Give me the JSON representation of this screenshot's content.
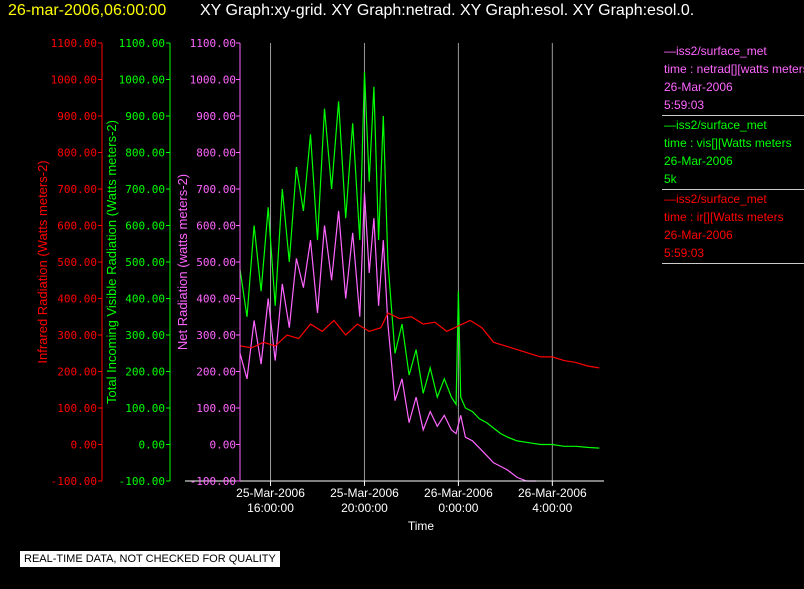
{
  "header": {
    "timestamp": "26-mar-2006,06:00:00",
    "graphs": "XY Graph:xy-grid.  XY Graph:netrad.  XY Graph:esol.  XY Graph:esol.0."
  },
  "notice": "REAL-TIME DATA, NOT CHECKED FOR QUALITY",
  "legend": [
    {
      "color": "#ff66ff",
      "line1": "—iss2/surface_met",
      "line2": "time : netrad[][watts meters",
      "line3": "26-Mar-2006",
      "line4": "5:59:03"
    },
    {
      "color": "#00ff00",
      "line1": "—iss2/surface_met",
      "line2": "time : vis[][Watts meters",
      "line3": "26-Mar-2006",
      "line4": "5k"
    },
    {
      "color": "#ff0000",
      "line1": "—iss2/surface_met",
      "line2": "time : ir[][Watts meters",
      "line3": "26-Mar-2006",
      "line4": "5:59:03"
    }
  ],
  "chart_data": {
    "type": "line",
    "xlabel": "Time",
    "x_ticks": [
      {
        "hour": 16,
        "line1": "25-Mar-2006",
        "line2": "16:00:00"
      },
      {
        "hour": 20,
        "line1": "25-Mar-2006",
        "line2": "20:00:00"
      },
      {
        "hour": 24,
        "line1": "26-Mar-2006",
        "line2": "0:00:00"
      },
      {
        "hour": 28,
        "line1": "26-Mar-2006",
        "line2": "4:00:00"
      }
    ],
    "xlim_hours": [
      14.7,
      30.2
    ],
    "grid_x": true,
    "ylim": [
      -100,
      1100
    ],
    "y_ticks": [
      "-100.00",
      "0.00",
      "100.00",
      "200.00",
      "300.00",
      "400.00",
      "500.00",
      "600.00",
      "700.00",
      "800.00",
      "900.00",
      "1000.00",
      "1100.00"
    ],
    "y_axes": [
      {
        "label": "Infrared Radiation (Watts meters-2)",
        "color": "#ff0000"
      },
      {
        "label": "Total Incoming Visible Radiation (Watts meters-2)",
        "color": "#00ff00"
      },
      {
        "label": "Net Radiation (watts meters-2)",
        "color": "#ff66ff"
      }
    ],
    "series": [
      {
        "color": "#00ff00",
        "x": [
          14.7,
          15.0,
          15.3,
          15.6,
          15.9,
          16.2,
          16.5,
          16.8,
          17.1,
          17.4,
          17.7,
          18.0,
          18.3,
          18.6,
          18.9,
          19.2,
          19.5,
          19.8,
          20.0,
          20.2,
          20.4,
          20.6,
          20.8,
          21.0,
          21.3,
          21.6,
          21.9,
          22.2,
          22.5,
          22.8,
          23.1,
          23.4,
          23.7,
          23.9,
          24.0,
          24.1,
          24.3,
          24.6,
          24.9,
          25.2,
          25.5,
          25.8,
          26.1,
          26.5,
          27.0,
          27.5,
          28.0,
          28.5,
          29.0,
          29.5,
          30.0
        ],
        "y": [
          480,
          350,
          600,
          420,
          650,
          380,
          700,
          500,
          760,
          640,
          850,
          560,
          920,
          700,
          940,
          620,
          880,
          560,
          1020,
          720,
          980,
          560,
          900,
          500,
          250,
          330,
          190,
          260,
          140,
          210,
          130,
          180,
          130,
          110,
          420,
          130,
          100,
          90,
          70,
          60,
          45,
          30,
          20,
          10,
          5,
          0,
          0,
          -5,
          -5,
          -8,
          -10
        ]
      },
      {
        "color": "#ff66ff",
        "x": [
          14.7,
          15.0,
          15.3,
          15.6,
          15.9,
          16.2,
          16.5,
          16.8,
          17.1,
          17.4,
          17.7,
          18.0,
          18.3,
          18.6,
          18.9,
          19.2,
          19.5,
          19.8,
          20.0,
          20.2,
          20.4,
          20.6,
          20.8,
          21.0,
          21.3,
          21.6,
          21.9,
          22.2,
          22.5,
          22.8,
          23.1,
          23.4,
          23.7,
          23.9,
          24.1,
          24.3,
          24.6,
          24.9,
          25.2,
          25.5,
          25.8,
          26.1,
          26.5,
          26.9,
          27.3
        ],
        "y": [
          250,
          180,
          340,
          220,
          400,
          230,
          440,
          320,
          510,
          430,
          560,
          360,
          600,
          450,
          640,
          400,
          580,
          350,
          690,
          470,
          620,
          380,
          560,
          330,
          120,
          180,
          60,
          130,
          40,
          90,
          50,
          80,
          40,
          30,
          80,
          20,
          10,
          -10,
          -30,
          -50,
          -60,
          -70,
          -90,
          -100,
          -100
        ]
      },
      {
        "color": "#ff0000",
        "x": [
          14.7,
          15.2,
          15.7,
          16.2,
          16.7,
          17.2,
          17.7,
          18.2,
          18.7,
          19.2,
          19.7,
          20.2,
          20.7,
          21.0,
          21.5,
          22.0,
          22.5,
          23.0,
          23.5,
          24.0,
          24.5,
          25.0,
          25.5,
          26.0,
          26.5,
          27.0,
          27.5,
          28.0,
          28.5,
          29.0,
          29.5,
          30.0
        ],
        "y": [
          270,
          265,
          280,
          270,
          300,
          290,
          330,
          310,
          340,
          300,
          330,
          310,
          320,
          360,
          345,
          350,
          330,
          335,
          310,
          325,
          340,
          320,
          280,
          270,
          260,
          250,
          240,
          240,
          230,
          225,
          215,
          210
        ]
      }
    ]
  }
}
